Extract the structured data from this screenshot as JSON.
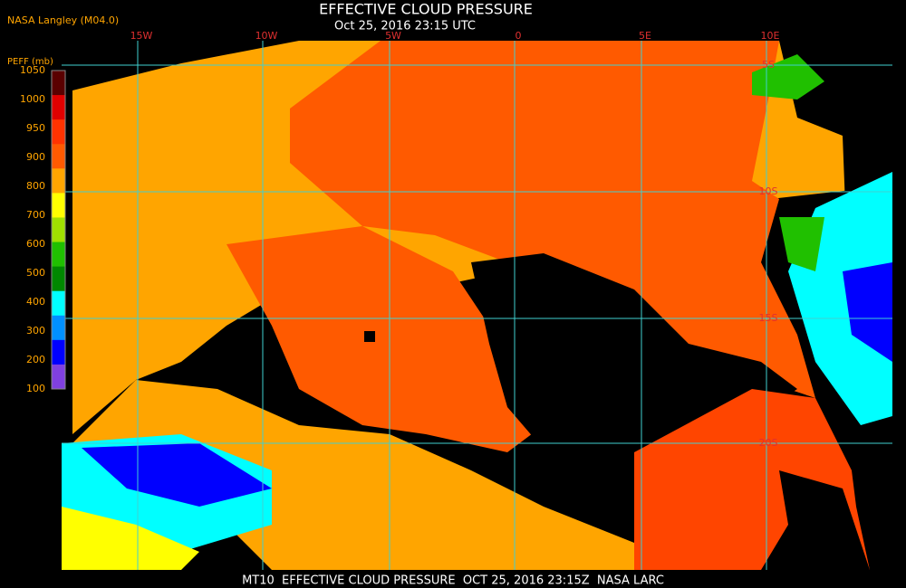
{
  "header": {
    "title": "EFFECTIVE CLOUD PRESSURE",
    "subtitle": "Oct 25, 2016 23:15 UTC",
    "source": "NASA Langley (M04.0)"
  },
  "legend": {
    "label": "PEFF (mb)",
    "ticks": [
      1050,
      1000,
      950,
      900,
      800,
      700,
      600,
      500,
      400,
      300,
      200,
      100
    ],
    "colors": [
      "#5a0000",
      "#e00000",
      "#ff3300",
      "#ff5a00",
      "#ffa500",
      "#ffff00",
      "#a0e000",
      "#20c000",
      "#008800",
      "#00ffff",
      "#0090ff",
      "#0000ff",
      "#8040e0"
    ]
  },
  "map": {
    "lon_labels": [
      "15W",
      "10W",
      "5W",
      "0",
      "5E",
      "10E"
    ],
    "lat_labels": [
      "5S",
      "10S",
      "15S",
      "20S"
    ]
  },
  "footer": {
    "text": "MT10  EFFECTIVE CLOUD PRESSURE  OCT 25, 2016 23:15Z  NASA LARC"
  }
}
